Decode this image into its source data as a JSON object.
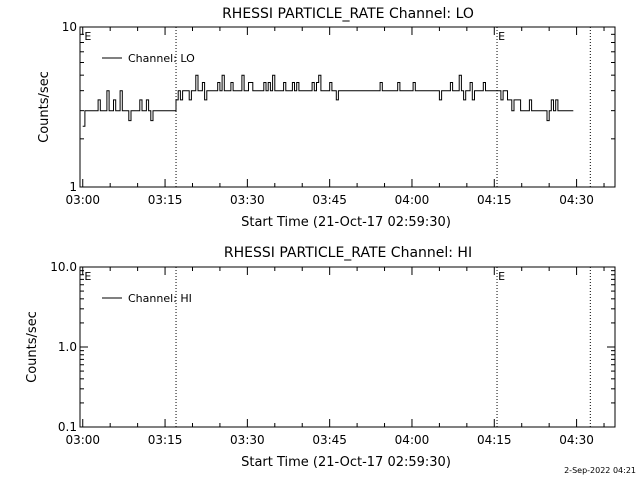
{
  "footer_stamp": "2-Sep-2022 04:21",
  "colors": {
    "background": "#ffffff",
    "ink": "#000000"
  },
  "chart_data": [
    {
      "type": "line",
      "title": "RHESSI PARTICLE_RATE Channel: LO",
      "xlabel": "Start Time (21-Oct-17 02:59:30)",
      "ylabel": "Counts/sec",
      "yscale": "log",
      "ylim": [
        1,
        10
      ],
      "xlim_min": [
        179.5,
        277
      ],
      "x_tick_min": [
        180,
        195,
        210,
        225,
        240,
        255,
        270
      ],
      "x_tick_labels": [
        "03:00",
        "03:15",
        "03:30",
        "03:45",
        "04:00",
        "04:15",
        "04:30"
      ],
      "y_tick_values": [
        1,
        10
      ],
      "y_tick_labels": [
        "1",
        "10"
      ],
      "event_lines_min": [
        197,
        255.5,
        272.5
      ],
      "event_markers": [
        {
          "label": "E",
          "at_min": 180.3
        },
        {
          "label": "E",
          "at_min": 255.7
        }
      ],
      "legend": {
        "placement": "top-left",
        "entries": [
          "Channel: LO"
        ]
      },
      "grid": false,
      "series": [
        {
          "name": "Channel: LO",
          "x_min": [
            180,
            180.4,
            180.8,
            181.2,
            181.6,
            182,
            182.4,
            182.8,
            183.2,
            183.6,
            184,
            184.4,
            184.8,
            185.2,
            185.6,
            186,
            186.4,
            186.8,
            187.2,
            187.6,
            188,
            188.4,
            188.8,
            189.2,
            189.6,
            190,
            190.4,
            190.8,
            191.2,
            191.6,
            192,
            192.4,
            192.8,
            193.2,
            193.6,
            194,
            194.4,
            194.8,
            195.2,
            195.6,
            196,
            196.4,
            196.8,
            197,
            197.4,
            197.8,
            198.2,
            198.6,
            199,
            199.4,
            199.8,
            200.2,
            200.6,
            201,
            201.4,
            201.8,
            202.2,
            202.6,
            203,
            203.4,
            203.8,
            204.2,
            204.6,
            205,
            205.4,
            205.8,
            206.2,
            206.6,
            207,
            207.4,
            207.8,
            208.2,
            208.6,
            209,
            209.4,
            209.8,
            210.2,
            210.6,
            211,
            211.4,
            211.8,
            212.2,
            212.6,
            213,
            213.4,
            213.8,
            214.2,
            214.6,
            215,
            215.4,
            215.8,
            216.2,
            216.6,
            217,
            217.4,
            217.8,
            218.2,
            218.6,
            219,
            219.4,
            219.8,
            220.2,
            220.6,
            221,
            221.4,
            221.8,
            222.2,
            222.6,
            223,
            223.4,
            223.8,
            224.2,
            224.6,
            225,
            225.4,
            225.8,
            226.2,
            226.6,
            227,
            227.4,
            227.8,
            228.2,
            228.6,
            229,
            229.4,
            229.8,
            230.2,
            230.6,
            231,
            231.4,
            231.8,
            232.2,
            232.6,
            233,
            233.4,
            233.8,
            234.2,
            234.6,
            235,
            235.4,
            235.8,
            236.2,
            236.6,
            237,
            237.4,
            237.8,
            238.2,
            238.6,
            239,
            239.4,
            239.8,
            240.2,
            240.6,
            241,
            241.4,
            241.8,
            242.2,
            242.6,
            243,
            243.4,
            243.8,
            244.2,
            244.6,
            245,
            245.4,
            245.8,
            246.2,
            246.6,
            247,
            247.4,
            247.8,
            248.2,
            248.6,
            249,
            249.4,
            249.8,
            250.2,
            250.6,
            251,
            251.4,
            251.8,
            252.2,
            252.6,
            253,
            253.4,
            253.8,
            254.2,
            254.6,
            255,
            255.4,
            255.8,
            256.2,
            256.6,
            257,
            257.4,
            257.8,
            258.2,
            258.6,
            259,
            259.4,
            259.8,
            260.2,
            260.6,
            261,
            261.4,
            261.8,
            262.2,
            262.6,
            263,
            263.4,
            263.8,
            264.2,
            264.6,
            265,
            265.4,
            265.8,
            266.2,
            266.6,
            267,
            267.4,
            267.8,
            268.2,
            268.6,
            269,
            269.4
          ],
          "values": [
            2.4,
            3,
            3,
            3,
            3,
            3,
            3,
            3.5,
            3,
            3,
            3,
            4,
            3,
            3,
            3.5,
            3,
            3,
            4,
            3,
            3,
            3,
            2.6,
            3,
            3,
            3,
            3,
            3.5,
            3,
            3,
            3.5,
            3,
            2.6,
            3,
            3,
            3,
            3,
            3,
            3,
            3,
            3,
            3,
            3,
            3,
            3.5,
            4,
            3.5,
            4,
            4,
            4,
            3.5,
            4,
            4,
            5,
            4,
            4,
            4.5,
            3.5,
            4,
            4,
            4,
            4,
            4,
            4.5,
            4,
            5,
            4,
            4,
            4,
            4.5,
            4,
            4,
            4,
            4,
            5,
            4,
            4,
            4.5,
            4.5,
            4,
            4,
            4,
            4,
            4,
            4.5,
            4,
            4.5,
            4,
            5,
            4,
            4,
            4,
            4,
            4.5,
            4,
            4,
            4,
            4.5,
            4,
            4.5,
            4,
            4,
            4,
            4,
            4,
            4,
            4.5,
            4,
            4.5,
            5,
            4,
            4,
            4,
            4,
            4.5,
            4,
            4,
            3.5,
            4,
            4,
            4,
            4,
            4,
            4,
            4,
            4,
            4,
            4,
            4,
            4,
            4,
            4,
            4,
            4,
            4,
            4,
            4,
            4.5,
            4,
            4,
            4,
            4,
            4,
            4,
            4,
            4.5,
            4,
            4,
            4,
            4,
            4,
            4,
            4.5,
            4,
            4,
            4,
            4,
            4,
            4,
            4,
            4,
            4,
            4,
            4,
            3.5,
            4,
            4,
            4,
            4,
            4.5,
            4,
            4,
            4,
            5,
            4,
            3.5,
            4,
            4,
            4.5,
            3.5,
            4,
            4,
            4,
            4,
            4.5,
            4,
            4,
            4,
            4,
            4,
            4,
            4,
            3.5,
            4,
            4,
            3.5,
            3.5,
            3,
            3.5,
            3.5,
            3.5,
            3,
            3,
            3,
            3,
            3.5,
            3,
            3,
            3,
            3,
            3,
            3,
            3,
            2.6,
            3,
            3.5,
            3,
            3.5,
            3,
            3,
            3,
            3,
            3,
            3,
            3,
            3,
            3,
            3,
            3
          ]
        }
      ]
    },
    {
      "type": "line",
      "title": "RHESSI PARTICLE_RATE Channel: HI",
      "xlabel": "Start Time (21-Oct-17 02:59:30)",
      "ylabel": "Counts/sec",
      "yscale": "log",
      "ylim": [
        0.1,
        10
      ],
      "xlim_min": [
        179.5,
        277
      ],
      "x_tick_min": [
        180,
        195,
        210,
        225,
        240,
        255,
        270
      ],
      "x_tick_labels": [
        "03:00",
        "03:15",
        "03:30",
        "03:45",
        "04:00",
        "04:15",
        "04:30"
      ],
      "y_tick_values": [
        0.1,
        1,
        10
      ],
      "y_tick_labels": [
        "0.1",
        "1.0",
        "10.0"
      ],
      "event_lines_min": [
        197,
        255.5,
        272.5
      ],
      "event_markers": [
        {
          "label": "E",
          "at_min": 180.3
        },
        {
          "label": "E",
          "at_min": 255.7
        }
      ],
      "legend": {
        "placement": "top-left",
        "entries": [
          "Channel: HI"
        ]
      },
      "grid": false,
      "series": [
        {
          "name": "Channel: HI",
          "x_min": [],
          "values": []
        }
      ]
    }
  ]
}
